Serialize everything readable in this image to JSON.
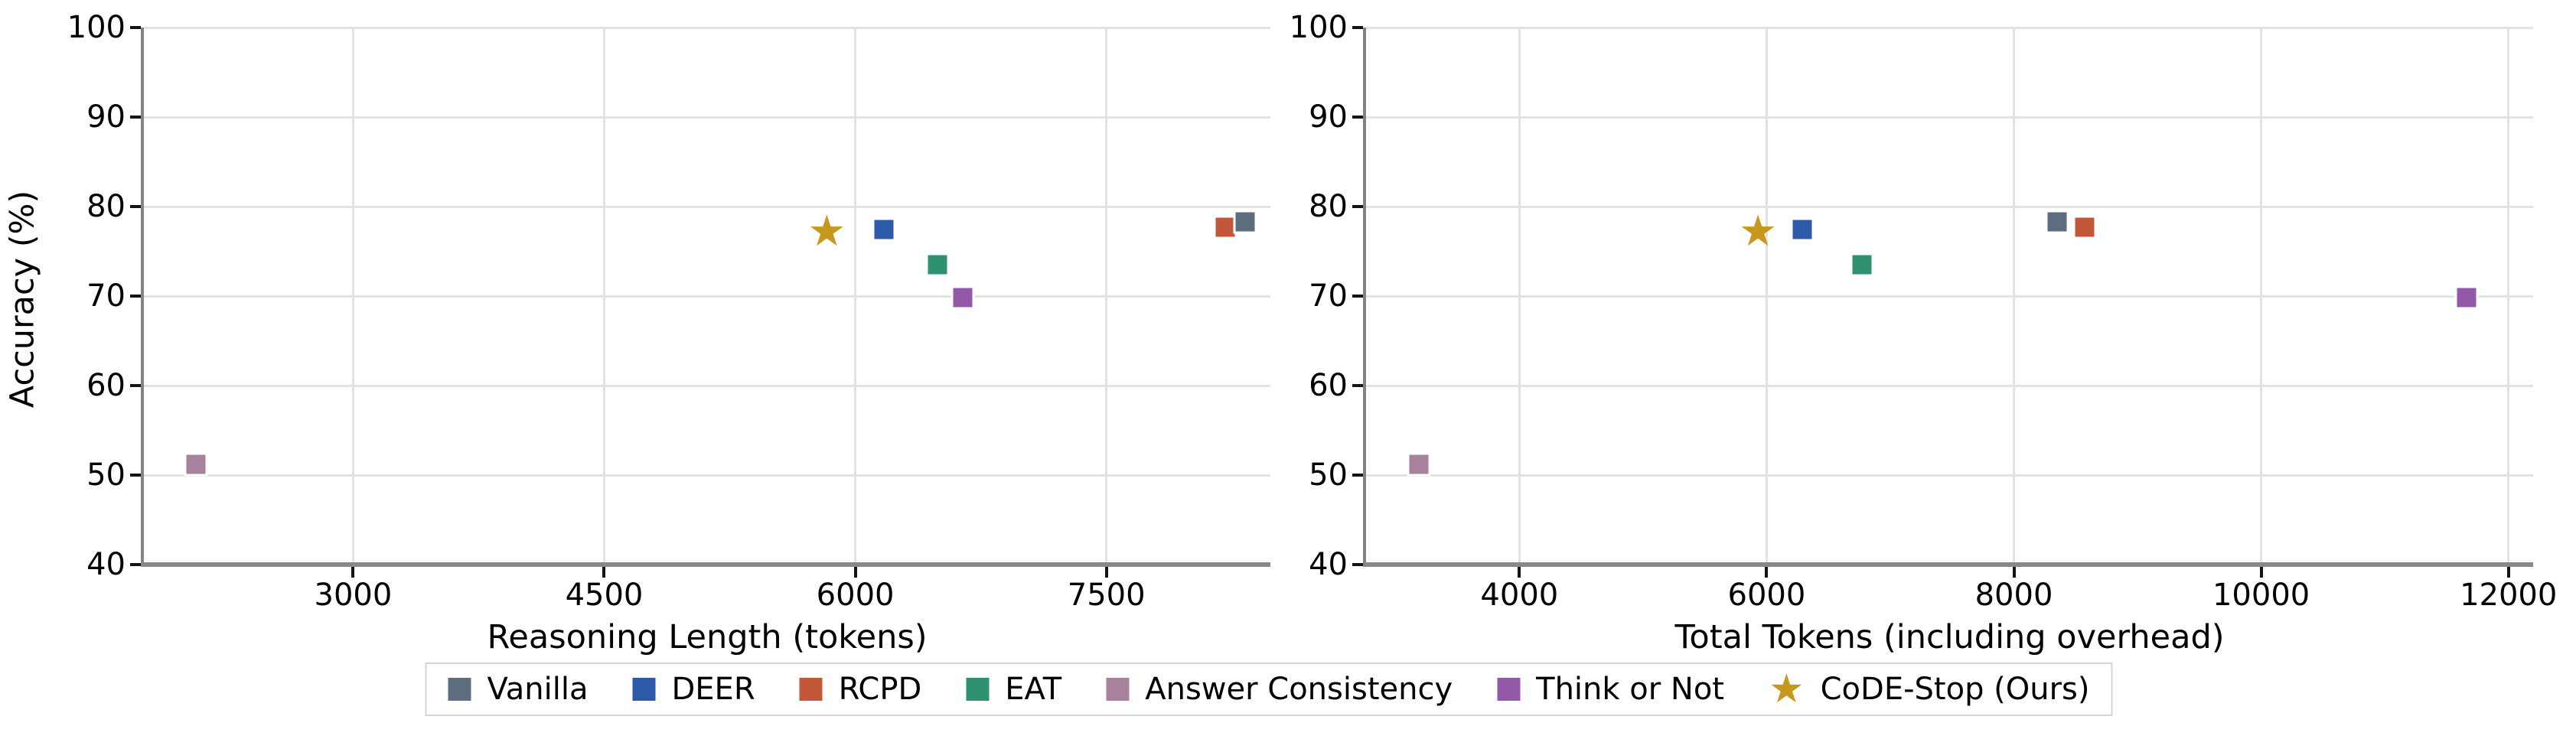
{
  "figure": {
    "background": "#ffffff",
    "grid_color": "#e2e2e2",
    "spine_color": "#848484",
    "text_color": "#000000",
    "ylabel": "Accuracy (%)"
  },
  "legend": {
    "position": "bottom-center",
    "items": [
      {
        "label": "Vanilla",
        "color": "#5c6d80",
        "marker": "square"
      },
      {
        "label": "DEER",
        "color": "#2d59a9",
        "marker": "square"
      },
      {
        "label": "RCPD",
        "color": "#c2573a",
        "marker": "square"
      },
      {
        "label": "EAT",
        "color": "#2e9170",
        "marker": "square"
      },
      {
        "label": "Answer Consistency",
        "color": "#a8819d",
        "marker": "square"
      },
      {
        "label": "Think or Not",
        "color": "#9458a8",
        "marker": "square"
      },
      {
        "label": "CoDE-Stop (Ours)",
        "color": "#c6981e",
        "marker": "star"
      }
    ]
  },
  "chart_data": [
    {
      "type": "scatter",
      "title": "",
      "xlabel": "Reasoning Length (tokens)",
      "ylabel": "Accuracy (%)",
      "xlim": [
        1750,
        8480
      ],
      "ylim": [
        40,
        100
      ],
      "xticks": [
        3000,
        4500,
        6000,
        7500
      ],
      "yticks": [
        40,
        50,
        60,
        70,
        80,
        90,
        100
      ],
      "grid": true,
      "legend_position": "bottom",
      "series": [
        {
          "name": "Vanilla",
          "marker": "square",
          "color": "#5c6d80",
          "points": [
            [
              8330,
              78.3
            ]
          ]
        },
        {
          "name": "DEER",
          "marker": "square",
          "color": "#2d59a9",
          "points": [
            [
              6170,
              77.4
            ]
          ]
        },
        {
          "name": "RCPD",
          "marker": "square",
          "color": "#c2573a",
          "points": [
            [
              8210,
              77.7
            ]
          ]
        },
        {
          "name": "EAT",
          "marker": "square",
          "color": "#2e9170",
          "points": [
            [
              6490,
              73.5
            ]
          ]
        },
        {
          "name": "Answer Consistency",
          "marker": "square",
          "color": "#a8819d",
          "points": [
            [
              2060,
              51.2
            ]
          ]
        },
        {
          "name": "Think or Not",
          "marker": "square",
          "color": "#9458a8",
          "points": [
            [
              6640,
              69.8
            ]
          ]
        },
        {
          "name": "CoDE-Stop (Ours)",
          "marker": "star",
          "color": "#c6981e",
          "points": [
            [
              5830,
              77.0
            ]
          ]
        }
      ]
    },
    {
      "type": "scatter",
      "title": "",
      "xlabel": "Total Tokens (including overhead)",
      "ylabel": "",
      "xlim": [
        2760,
        12200
      ],
      "ylim": [
        40,
        100
      ],
      "xticks": [
        4000,
        6000,
        8000,
        10000,
        12000
      ],
      "yticks": [
        40,
        50,
        60,
        70,
        80,
        90,
        100
      ],
      "grid": true,
      "legend_position": "bottom",
      "series": [
        {
          "name": "Vanilla",
          "marker": "square",
          "color": "#5c6d80",
          "points": [
            [
              8350,
              78.3
            ]
          ]
        },
        {
          "name": "DEER",
          "marker": "square",
          "color": "#2d59a9",
          "points": [
            [
              6290,
              77.4
            ]
          ]
        },
        {
          "name": "RCPD",
          "marker": "square",
          "color": "#c2573a",
          "points": [
            [
              8570,
              77.7
            ]
          ]
        },
        {
          "name": "EAT",
          "marker": "square",
          "color": "#2e9170",
          "points": [
            [
              6770,
              73.5
            ]
          ]
        },
        {
          "name": "Answer Consistency",
          "marker": "square",
          "color": "#a8819d",
          "points": [
            [
              3190,
              51.2
            ]
          ]
        },
        {
          "name": "Think or Not",
          "marker": "square",
          "color": "#9458a8",
          "points": [
            [
              11660,
              69.8
            ]
          ]
        },
        {
          "name": "CoDE-Stop (Ours)",
          "marker": "star",
          "color": "#c6981e",
          "points": [
            [
              5930,
              77.0
            ]
          ]
        }
      ]
    }
  ]
}
